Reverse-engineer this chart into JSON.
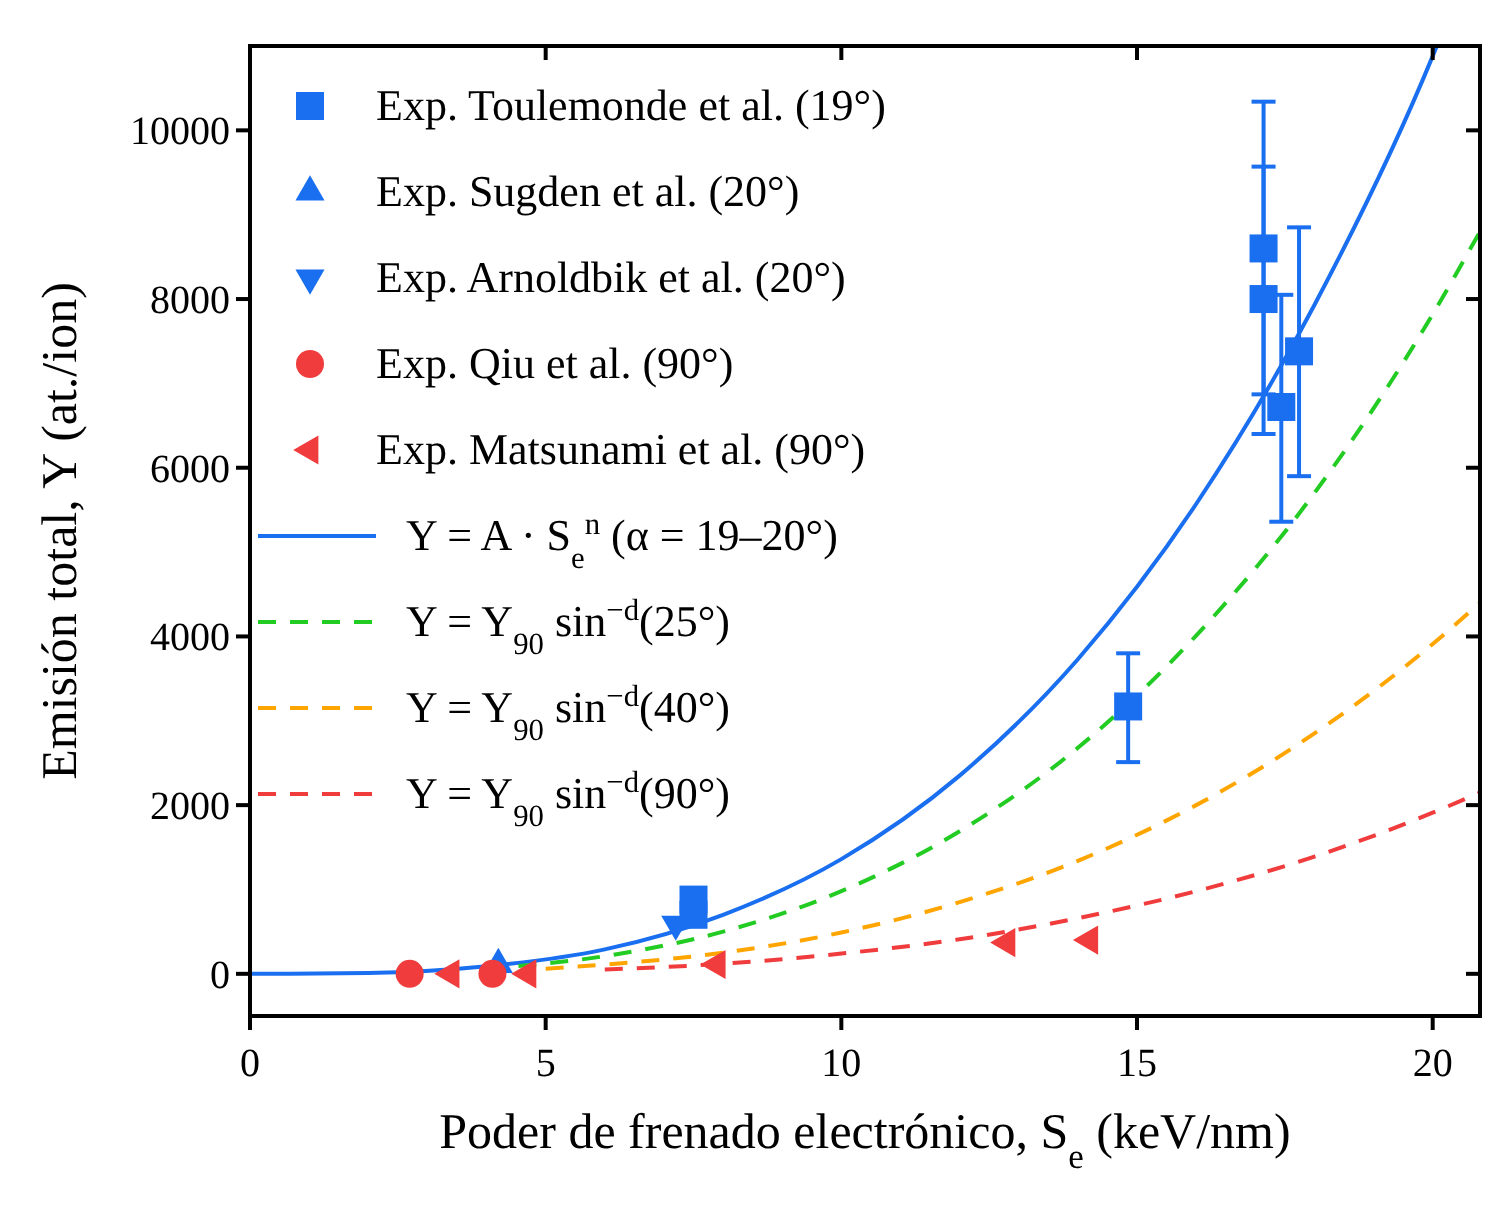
{
  "chart_data": {
    "type": "scatter",
    "xlabel": "Poder de frenado electrónico, S$_{e}$ (keV/nm)",
    "ylabel": "Emisión total, Y (at./ion)",
    "xlim": [
      0,
      20.8
    ],
    "ylim": [
      -500,
      11000
    ],
    "xticks": [
      0,
      5,
      10,
      15,
      20
    ],
    "yticks": [
      0,
      2000,
      4000,
      6000,
      8000,
      10000
    ],
    "grid": false,
    "legend": "top left",
    "series": [
      {
        "name": "Exp. Toulemonde et al. (19°)",
        "marker": "square",
        "color": "#1a6ff0",
        "x": [
          7.5,
          7.5,
          14.85,
          17.14,
          17.14,
          17.44,
          17.74
        ],
        "values": [
          880,
          700,
          3170,
          8600,
          8000,
          6720,
          7380
        ],
        "errors": [
          null,
          null,
          [
            2510,
            3800
          ],
          [
            6870,
            10340
          ],
          [
            6400,
            9570
          ],
          [
            5360,
            8050
          ],
          [
            5900,
            8850
          ]
        ]
      },
      {
        "name": "Exp. Sugden et al. (20°)",
        "marker": "triangle",
        "color": "#1a6ff0",
        "x": [
          4.2
        ],
        "values": [
          110
        ]
      },
      {
        "name": "Exp. Arnoldbik et al. (20°)",
        "marker": "triangle-down",
        "color": "#1a6ff0",
        "x": [
          7.2
        ],
        "values": [
          590
        ]
      },
      {
        "name": "Exp. Qiu et al. (90°)",
        "marker": "circle",
        "color": "#f03c3c",
        "x": [
          2.7,
          4.1
        ],
        "values": [
          0,
          0
        ]
      },
      {
        "name": "Exp. Matsunami et al. (90°)",
        "marker": "triangle-left",
        "color": "#f03c3c",
        "x": [
          3.4,
          4.7,
          7.9,
          12.8,
          14.2
        ],
        "values": [
          0,
          0,
          110,
          370,
          400
        ]
      },
      {
        "name": "Y = A · S$_{e}$$^{n}$ (α = 19–20°)",
        "type": "line",
        "line_style": "solid",
        "color": "#1a6ff0",
        "x": [
          0,
          2,
          4,
          6,
          8,
          10,
          12,
          14,
          16,
          18,
          20,
          20.07
        ],
        "values": [
          0,
          10,
          90,
          290,
          700,
          1360,
          2350,
          3730,
          5570,
          7930,
          10880,
          11000
        ]
      },
      {
        "name": "Y = Y$_{90}$ sin$^{−d}$(25°)",
        "type": "line",
        "line_style": "dashed",
        "color": "#22cc22",
        "x": [
          4,
          6,
          8,
          10,
          12,
          14,
          16,
          18,
          20,
          20.8
        ],
        "values": [
          60,
          210,
          500,
          980,
          1690,
          2680,
          4010,
          5700,
          7820,
          8800
        ]
      },
      {
        "name": "Y = Y$_{90}$ sin$^{−d}$(40°)",
        "type": "line",
        "line_style": "dashed",
        "color": "#ffa500",
        "x": [
          5,
          6,
          8,
          10,
          12,
          14,
          16,
          18,
          20,
          20.8
        ],
        "values": [
          60,
          110,
          250,
          490,
          850,
          1340,
          2000,
          2850,
          3910,
          4400
        ]
      },
      {
        "name": "Y = Y$_{90}$ sin$^{−d}$(90°)",
        "type": "line",
        "line_style": "dashed",
        "color": "#f03c3c",
        "x": [
          6,
          8,
          10,
          12,
          14,
          16,
          18,
          20,
          20.8
        ],
        "values": [
          50,
          120,
          240,
          410,
          660,
          980,
          1390,
          1910,
          2150
        ]
      }
    ]
  }
}
